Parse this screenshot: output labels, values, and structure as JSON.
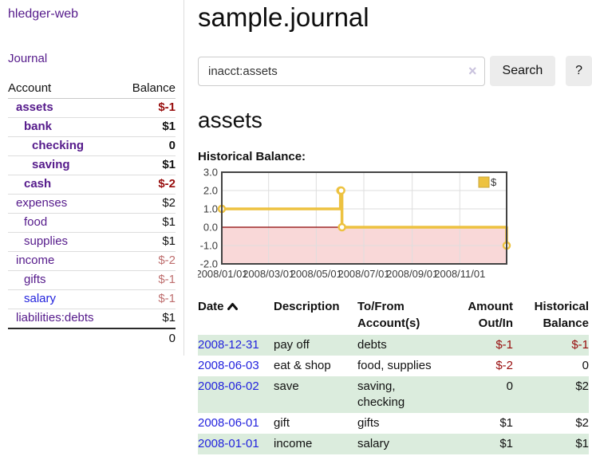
{
  "colors": {
    "link_visited_purple": "#551a8b",
    "link_blue": "#2323dd",
    "negative_strong": "#970c0c",
    "negative_muted": "#be6e6e",
    "row_stripe_green": "#dbecdd",
    "series_yellow": "#edc240",
    "negative_region_pink": "#f9d8d8",
    "zero_line_red": "#8b0000",
    "grid_gray": "#dedede",
    "chart_border": "#434343"
  },
  "sidebar": {
    "app_title": "hledger-web",
    "journal_label": "Journal",
    "accounts": {
      "col_account": "Account",
      "col_balance": "Balance",
      "rows": [
        {
          "name": "assets",
          "balance": "$-1",
          "level": 0,
          "bold": true,
          "balance_style": "neg-strong",
          "link_style": "purple"
        },
        {
          "name": "bank",
          "balance": "$1",
          "level": 1,
          "bold": true,
          "balance_style": "pos",
          "link_style": "purple"
        },
        {
          "name": "checking",
          "balance": "0",
          "level": 2,
          "bold": true,
          "balance_style": "pos",
          "link_style": "purple"
        },
        {
          "name": "saving",
          "balance": "$1",
          "level": 2,
          "bold": true,
          "balance_style": "pos",
          "link_style": "purple"
        },
        {
          "name": "cash",
          "balance": "$-2",
          "level": 1,
          "bold": true,
          "balance_style": "neg-strong",
          "link_style": "purple"
        },
        {
          "name": "expenses",
          "balance": "$2",
          "level": 0,
          "bold": false,
          "balance_style": "pos",
          "link_style": "purple"
        },
        {
          "name": "food",
          "balance": "$1",
          "level": 1,
          "bold": false,
          "balance_style": "pos",
          "link_style": "purple"
        },
        {
          "name": "supplies",
          "balance": "$1",
          "level": 1,
          "bold": false,
          "balance_style": "pos",
          "link_style": "purple"
        },
        {
          "name": "income",
          "balance": "$-2",
          "level": 0,
          "bold": false,
          "balance_style": "neg-muted",
          "link_style": "purple"
        },
        {
          "name": "gifts",
          "balance": "$-1",
          "level": 1,
          "bold": false,
          "balance_style": "neg-muted",
          "link_style": "purple"
        },
        {
          "name": "salary",
          "balance": "$-1",
          "level": 1,
          "bold": false,
          "balance_style": "neg-muted",
          "link_style": "blue"
        },
        {
          "name": "liabilities:debts",
          "balance": "$1",
          "level": 0,
          "bold": false,
          "balance_style": "pos",
          "link_style": "purple"
        }
      ],
      "total": "0"
    }
  },
  "main": {
    "title": "sample.journal",
    "search": {
      "value": "inacct:assets",
      "clear_icon": "×",
      "button_label": "Search",
      "help_label": "?"
    },
    "account_heading": "assets",
    "chart_label": "Historical Balance:"
  },
  "chart_data": {
    "type": "line",
    "step": true,
    "title": "Historical Balance",
    "legend": [
      {
        "label": "$"
      }
    ],
    "legend_position": "top-right",
    "grid": true,
    "ylim": [
      -2,
      3
    ],
    "xlim_days": [
      1,
      366
    ],
    "y_ticks": [
      {
        "v": 3,
        "label": "3.0"
      },
      {
        "v": 2,
        "label": "2.0"
      },
      {
        "v": 1,
        "label": "1.0"
      },
      {
        "v": 0,
        "label": "0.0"
      },
      {
        "v": -1,
        "label": "-1.0"
      },
      {
        "v": -2,
        "label": "-2.0"
      }
    ],
    "x_ticks": [
      {
        "day": 1,
        "label": "2008/01/01"
      },
      {
        "day": 61,
        "label": "2008/03/01"
      },
      {
        "day": 122,
        "label": "2008/05/01"
      },
      {
        "day": 183,
        "label": "2008/07/01"
      },
      {
        "day": 245,
        "label": "2008/09/01"
      },
      {
        "day": 306,
        "label": "2008/11/01"
      }
    ],
    "series": [
      {
        "name": "$",
        "points": [
          {
            "date": "2008-01-01",
            "day": 1,
            "value": 1
          },
          {
            "date": "2008-06-01",
            "day": 153,
            "value": 2
          },
          {
            "date": "2008-06-02",
            "day": 154,
            "value": 2
          },
          {
            "date": "2008-06-03",
            "day": 155,
            "value": 0
          },
          {
            "date": "2008-12-31",
            "day": 366,
            "value": -1
          }
        ]
      }
    ],
    "negative_region_below": 0
  },
  "register": {
    "headers": {
      "date": "Date",
      "description": "Description",
      "accounts": "To/From Account(s)",
      "amount": "Amount Out/In",
      "balance": "Historical Balance"
    },
    "rows": [
      {
        "date": "2008-12-31",
        "description": "pay off",
        "accounts": "debts",
        "amount": "$-1",
        "balance": "$-1",
        "amount_neg": true,
        "balance_neg": true,
        "stripe": true
      },
      {
        "date": "2008-06-03",
        "description": "eat & shop",
        "accounts": "food, supplies",
        "amount": "$-2",
        "balance": "0",
        "amount_neg": true,
        "balance_neg": false,
        "stripe": false
      },
      {
        "date": "2008-06-02",
        "description": "save",
        "accounts": "saving, checking",
        "amount": "0",
        "balance": "$2",
        "amount_neg": false,
        "balance_neg": false,
        "stripe": true
      },
      {
        "date": "2008-06-01",
        "description": "gift",
        "accounts": "gifts",
        "amount": "$1",
        "balance": "$2",
        "amount_neg": false,
        "balance_neg": false,
        "stripe": false
      },
      {
        "date": "2008-01-01",
        "description": "income",
        "accounts": "salary",
        "amount": "$1",
        "balance": "$1",
        "amount_neg": false,
        "balance_neg": false,
        "stripe": true
      }
    ]
  }
}
